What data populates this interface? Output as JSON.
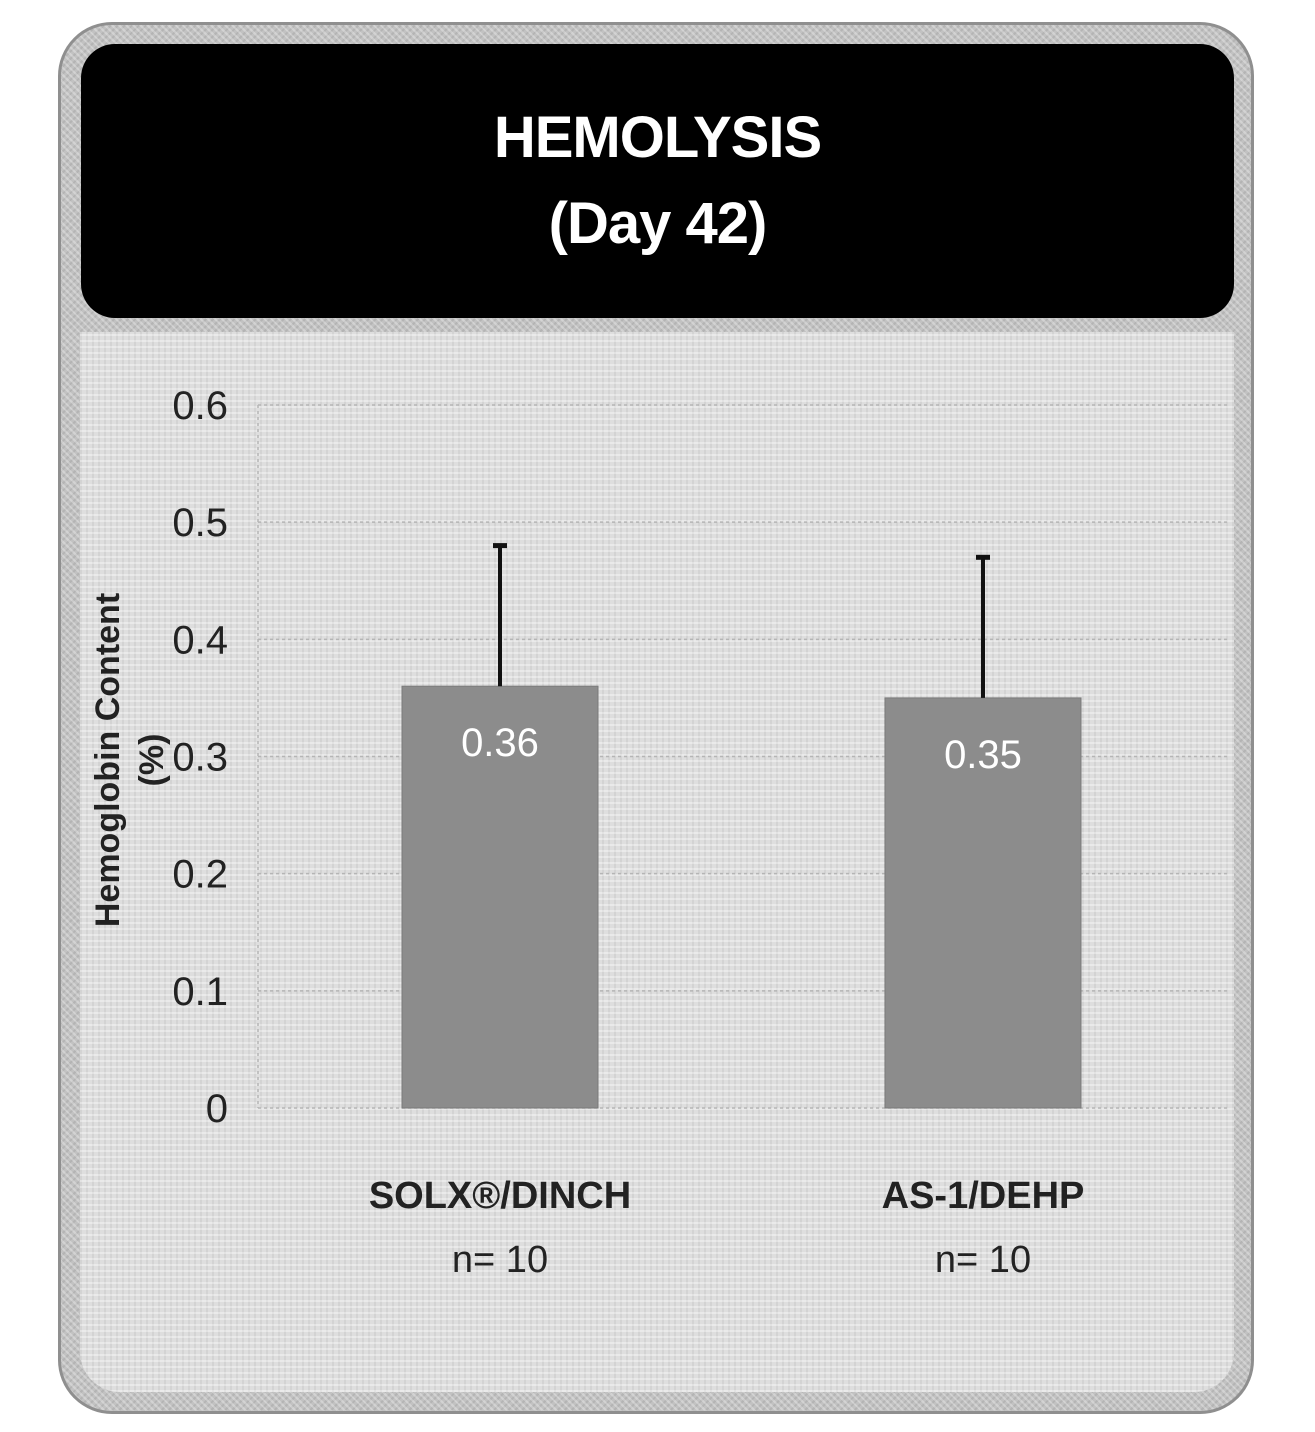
{
  "chart_data": {
    "type": "bar",
    "title": "HEMOLYSIS",
    "subtitle": "(Day 42)",
    "ylabel_line1": "Hemoglobin Content",
    "ylabel_line2": "(%)",
    "xlabel": "",
    "ylim": [
      0,
      0.6
    ],
    "yticks": [
      "0",
      "0.1",
      "0.2",
      "0.3",
      "0.4",
      "0.5",
      "0.6"
    ],
    "categories": [
      "SOLX®/DINCH",
      "AS-1/DEHP"
    ],
    "category_sublabels": [
      "n= 10",
      "n= 10"
    ],
    "values": [
      0.36,
      0.35
    ],
    "data_labels": [
      "0.36",
      "0.35"
    ],
    "error_upper": [
      0.48,
      0.47
    ],
    "grid": true,
    "legend": "none",
    "colors": {
      "bar": "#8c8c8c",
      "banner": "#000000",
      "frame": "#c2c2c2",
      "text": "#222222"
    }
  }
}
